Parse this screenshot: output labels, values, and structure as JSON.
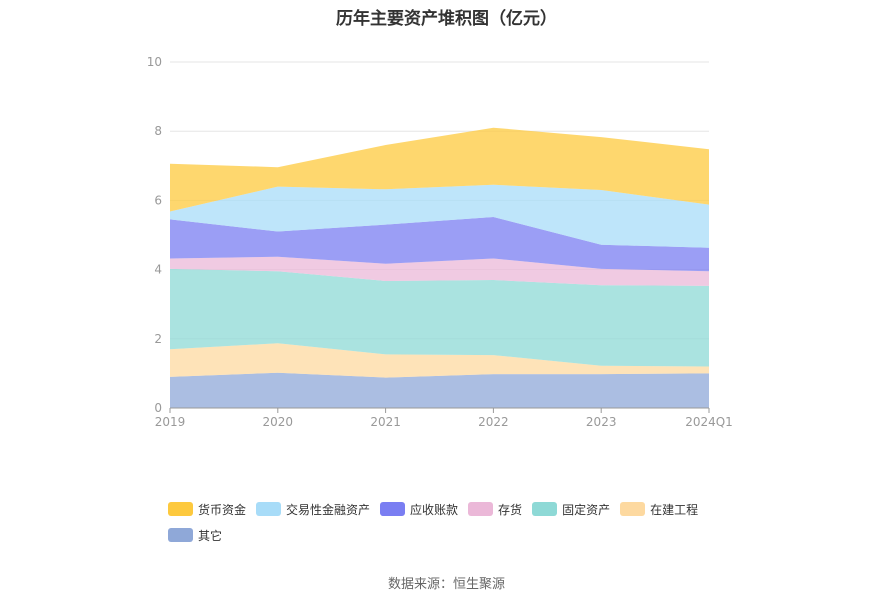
{
  "source_text": "数据来源：恒生聚源",
  "chart_data": {
    "type": "area",
    "stacked": true,
    "title": "历年主要资产堆积图（亿元）",
    "x": [
      "2019",
      "2020",
      "2021",
      "2022",
      "2023",
      "2024Q1"
    ],
    "ylim": [
      0,
      10
    ],
    "yticks": [
      0,
      2,
      4,
      6,
      8,
      10
    ],
    "grid": true,
    "legend_position": "bottom",
    "series": [
      {
        "name": "其它",
        "color": "#8fa8d8",
        "values": [
          0.9,
          1.02,
          0.88,
          0.98,
          0.98,
          1.0
        ]
      },
      {
        "name": "在建工程",
        "color": "#fdd9a0",
        "values": [
          0.8,
          0.85,
          0.67,
          0.55,
          0.24,
          0.2
        ]
      },
      {
        "name": "固定资产",
        "color": "#8ed9d6",
        "values": [
          2.32,
          2.08,
          2.12,
          2.17,
          2.33,
          2.33
        ]
      },
      {
        "name": "存货",
        "color": "#ebb8d8",
        "values": [
          0.3,
          0.42,
          0.5,
          0.62,
          0.47,
          0.42
        ]
      },
      {
        "name": "应收账款",
        "color": "#7a7ef2",
        "values": [
          1.13,
          0.73,
          1.13,
          1.2,
          0.7,
          0.68
        ]
      },
      {
        "name": "交易性金融资产",
        "color": "#a8dcf8",
        "values": [
          0.23,
          1.3,
          1.02,
          0.93,
          1.58,
          1.25
        ]
      },
      {
        "name": "货币资金",
        "color": "#fdc93e",
        "values": [
          1.38,
          0.56,
          1.28,
          1.65,
          1.53,
          1.6
        ]
      }
    ],
    "legend_order": [
      "货币资金",
      "交易性金融资产",
      "应收账款",
      "存货",
      "固定资产",
      "在建工程",
      "其它"
    ]
  }
}
